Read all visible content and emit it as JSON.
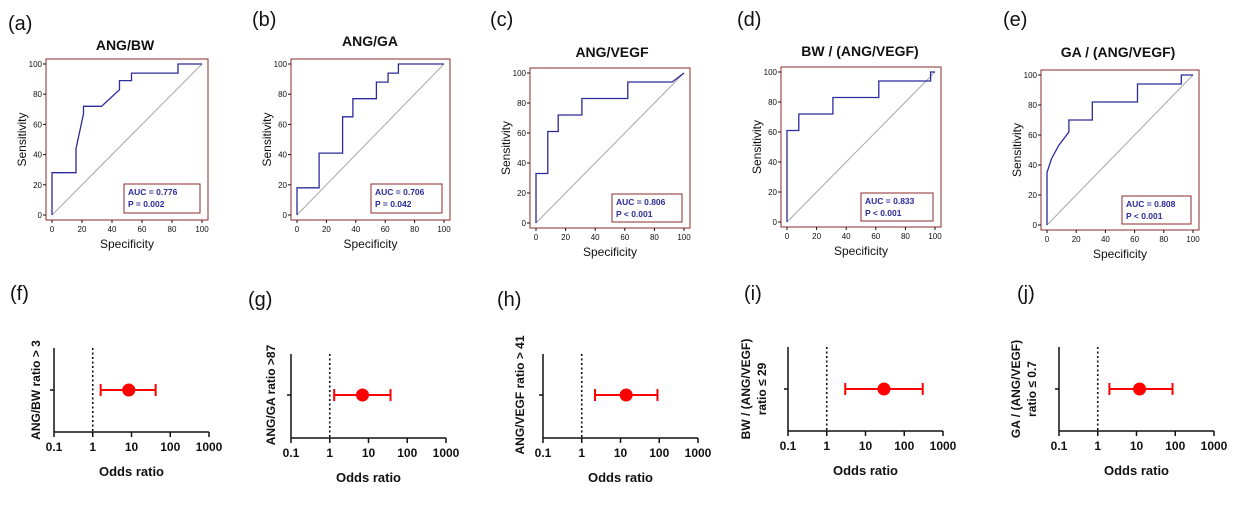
{
  "roc_panels": [
    {
      "letter": "(a)",
      "title": "ANG/BW",
      "xlabel": "Specificity",
      "ylabel": "Sensitivity",
      "ticks": [
        "0",
        "20",
        "40",
        "60",
        "80",
        "100"
      ],
      "auc": "AUC = 0.776",
      "p": "P = 0.002"
    },
    {
      "letter": "(b)",
      "title": "ANG/GA",
      "xlabel": "Specificity",
      "ylabel": "Sensitivity",
      "ticks": [
        "0",
        "20",
        "40",
        "60",
        "80",
        "100"
      ],
      "auc": "AUC = 0.706",
      "p": "P = 0.042"
    },
    {
      "letter": "(c)",
      "title": "ANG/VEGF",
      "xlabel": "Specificity",
      "ylabel": "Sensitivity",
      "ticks": [
        "0",
        "20",
        "40",
        "60",
        "80",
        "100"
      ],
      "auc": "AUC = 0.806",
      "p": "P < 0.001"
    },
    {
      "letter": "(d)",
      "title": "BW / (ANG/VEGF)",
      "xlabel": "Specificity",
      "ylabel": "Sensitivity",
      "ticks": [
        "0",
        "20",
        "40",
        "60",
        "80",
        "100"
      ],
      "auc": "AUC = 0.833",
      "p": "P < 0.001"
    },
    {
      "letter": "(e)",
      "title": "GA / (ANG/VEGF)",
      "xlabel": "Specificity",
      "ylabel": "Sensitivity",
      "ticks": [
        "0",
        "20",
        "40",
        "60",
        "80",
        "100"
      ],
      "auc": "AUC = 0.808",
      "p": "P < 0.001"
    }
  ],
  "or_panels": [
    {
      "letter": "(f)",
      "ylabel_lines": [
        "ANG/BW ratio > 3"
      ],
      "xlabel": "Odds ratio",
      "ticks": [
        "0.1",
        "1",
        "10",
        "100",
        "1000"
      ]
    },
    {
      "letter": "(g)",
      "ylabel_lines": [
        "ANG/GA ratio >87"
      ],
      "xlabel": "Odds ratio",
      "ticks": [
        "0.1",
        "1",
        "10",
        "100",
        "1000"
      ]
    },
    {
      "letter": "(h)",
      "ylabel_lines": [
        "ANG/VEGF ratio > 41"
      ],
      "xlabel": "Odds ratio",
      "ticks": [
        "0.1",
        "1",
        "10",
        "100",
        "1000"
      ]
    },
    {
      "letter": "(i)",
      "ylabel_lines": [
        "BW / (ANG/VEGF)",
        "ratio ≤ 29"
      ],
      "xlabel": "Odds ratio",
      "ticks": [
        "0.1",
        "1",
        "10",
        "100",
        "1000"
      ]
    },
    {
      "letter": "(j)",
      "ylabel_lines": [
        "GA / (ANG/VEGF)",
        "ratio ≤ 0.7"
      ],
      "xlabel": "Odds ratio",
      "ticks": [
        "0.1",
        "1",
        "10",
        "100",
        "1000"
      ]
    }
  ],
  "colors": {
    "roc_curve": "#2b2b9a",
    "reference_line": "#a8a8a8",
    "frame": "#8b2a2a",
    "or_point": "#ff0000",
    "text": "#111111"
  },
  "chart_data": [
    {
      "type": "line",
      "panel": "(a)",
      "title": "ANG/BW",
      "xlabel": "Specificity",
      "ylabel": "Sensitivity",
      "xlim": [
        0,
        100
      ],
      "ylim": [
        0,
        100
      ],
      "series": [
        {
          "x": [
            0,
            0,
            16,
            16,
            21,
            21,
            33,
            33,
            45,
            45,
            53,
            53,
            84,
            84,
            100
          ],
          "y": [
            0,
            28,
            28,
            44,
            67,
            72,
            72,
            72,
            83,
            89,
            89,
            94,
            94,
            100,
            100
          ]
        }
      ],
      "auc": 0.776,
      "p": "0.002"
    },
    {
      "type": "line",
      "panel": "(b)",
      "title": "ANG/GA",
      "xlabel": "Specificity",
      "ylabel": "Sensitivity",
      "xlim": [
        0,
        100
      ],
      "ylim": [
        0,
        100
      ],
      "series": [
        {
          "x": [
            0,
            0,
            15,
            15,
            31,
            31,
            38,
            38,
            46,
            46,
            54,
            54,
            62,
            62,
            69,
            69,
            77,
            77,
            100
          ],
          "y": [
            0,
            18,
            18,
            41,
            41,
            65,
            65,
            77,
            77,
            77,
            77,
            88,
            88,
            94,
            94,
            100,
            100,
            100,
            100
          ]
        }
      ],
      "auc": 0.706,
      "p": "0.042"
    },
    {
      "type": "line",
      "panel": "(c)",
      "title": "ANG/VEGF",
      "xlabel": "Specificity",
      "ylabel": "Sensitivity",
      "xlim": [
        0,
        100
      ],
      "ylim": [
        0,
        100
      ],
      "series": [
        {
          "x": [
            0,
            0,
            8,
            8,
            15,
            15,
            31,
            31,
            62,
            62,
            92,
            100
          ],
          "y": [
            0,
            33,
            33,
            61,
            61,
            72,
            72,
            83,
            83,
            94,
            94,
            100
          ]
        }
      ],
      "auc": 0.806,
      "p": "< 0.001"
    },
    {
      "type": "line",
      "panel": "(d)",
      "title": "BW / (ANG/VEGF)",
      "xlabel": "Specificity",
      "ylabel": "Sensitivity",
      "xlim": [
        0,
        100
      ],
      "ylim": [
        0,
        100
      ],
      "series": [
        {
          "x": [
            0,
            0,
            8,
            8,
            31,
            31,
            62,
            62,
            97,
            97,
            100
          ],
          "y": [
            0,
            61,
            61,
            72,
            72,
            83,
            83,
            94,
            94,
            100,
            100
          ]
        }
      ],
      "auc": 0.833,
      "p": "< 0.001"
    },
    {
      "type": "line",
      "panel": "(e)",
      "title": "GA / (ANG/VEGF)",
      "xlabel": "Specificity",
      "ylabel": "Sensitivity",
      "xlim": [
        0,
        100
      ],
      "ylim": [
        0,
        100
      ],
      "series": [
        {
          "x": [
            0,
            0,
            3,
            8,
            15,
            15,
            31,
            31,
            62,
            62,
            92,
            92,
            100
          ],
          "y": [
            0,
            35,
            44,
            53,
            62,
            70,
            70,
            82,
            82,
            94,
            94,
            100,
            100
          ]
        }
      ],
      "auc": 0.808,
      "p": "< 0.001"
    },
    {
      "type": "scatter",
      "panel": "(f)",
      "xlabel": "Odds ratio",
      "ylabel": "ANG/BW ratio > 3",
      "x_scale": "log",
      "xlim": [
        0.1,
        1000
      ],
      "reference_x": 1,
      "or": 8.5,
      "ci": [
        1.6,
        42
      ]
    },
    {
      "type": "scatter",
      "panel": "(g)",
      "xlabel": "Odds ratio",
      "ylabel": "ANG/GA ratio >87",
      "x_scale": "log",
      "xlim": [
        0.1,
        1000
      ],
      "reference_x": 1,
      "or": 7.0,
      "ci": [
        1.3,
        37
      ]
    },
    {
      "type": "scatter",
      "panel": "(h)",
      "xlabel": "Odds ratio",
      "ylabel": "ANG/VEGF ratio > 41",
      "x_scale": "log",
      "xlim": [
        0.1,
        1000
      ],
      "reference_x": 1,
      "or": 14,
      "ci": [
        2.2,
        90
      ]
    },
    {
      "type": "scatter",
      "panel": "(i)",
      "xlabel": "Odds ratio",
      "ylabel": "BW / (ANG/VEGF) ratio ≤ 29",
      "x_scale": "log",
      "xlim": [
        0.1,
        1000
      ],
      "reference_x": 1,
      "or": 30,
      "ci": [
        3.0,
        300
      ]
    },
    {
      "type": "scatter",
      "panel": "(j)",
      "xlabel": "Odds ratio",
      "ylabel": "GA / (ANG/VEGF) ratio ≤ 0.7",
      "x_scale": "log",
      "xlim": [
        0.1,
        1000
      ],
      "reference_x": 1,
      "or": 12,
      "ci": [
        2.0,
        85
      ]
    }
  ]
}
